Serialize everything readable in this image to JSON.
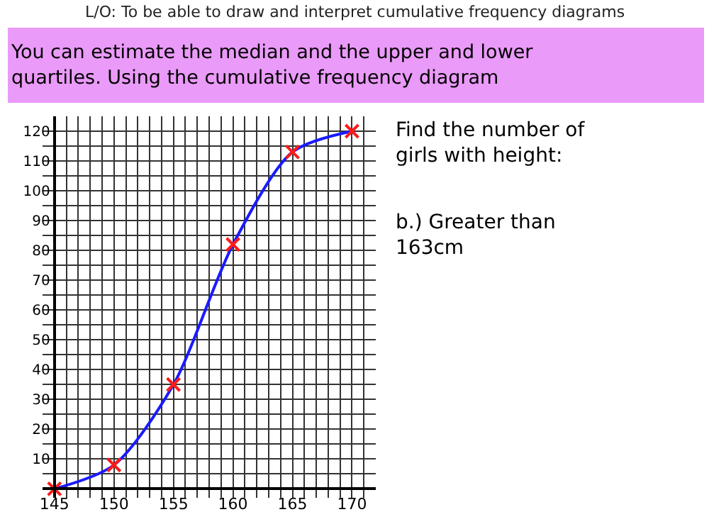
{
  "chart_data": {
    "type": "line",
    "title": "L/O: To be able to draw and interpret cumulative frequency diagrams",
    "subtitle": "You can estimate the median and the upper and lower quartiles. Using the cumulative frequency diagram",
    "annotations": [
      "Find the number of girls with height:",
      "b.) Greater than 163cm"
    ],
    "x": [
      145,
      150,
      155,
      160,
      165,
      170
    ],
    "series": [
      {
        "color": "#1a1aff",
        "marker": "none",
        "values": [
          0,
          8,
          35,
          82,
          113,
          120
        ]
      },
      {
        "type": "scatter",
        "color": "#ff1a1a",
        "marker": "cross",
        "values": [
          0,
          8,
          35,
          82,
          113,
          120
        ]
      }
    ],
    "xlim": [
      144,
      172
    ],
    "xticks": [
      145,
      150,
      155,
      160,
      165,
      170
    ],
    "ylim": [
      -3,
      125
    ],
    "yticks": [
      10,
      20,
      30,
      40,
      50,
      60,
      70,
      80,
      90,
      100,
      110,
      120
    ],
    "grid": true
  }
}
